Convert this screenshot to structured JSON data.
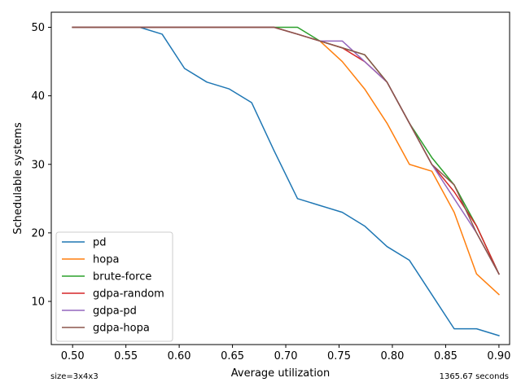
{
  "chart_data": {
    "type": "line",
    "xlabel": "Average utilization",
    "ylabel": "Schedulable systems",
    "xlim": [
      0.48,
      0.91
    ],
    "ylim": [
      3.7,
      52.2
    ],
    "xticks": [
      0.5,
      0.55,
      0.6,
      0.65,
      0.7,
      0.75,
      0.8,
      0.85,
      0.9
    ],
    "xtick_labels": [
      "0.50",
      "0.55",
      "0.60",
      "0.65",
      "0.70",
      "0.75",
      "0.80",
      "0.85",
      "0.90"
    ],
    "yticks": [
      10,
      20,
      30,
      40,
      50
    ],
    "ytick_labels": [
      "10",
      "20",
      "30",
      "40",
      "50"
    ],
    "grid": false,
    "legend_position": "lower-left",
    "x": [
      0.5,
      0.521,
      0.542,
      0.563,
      0.584,
      0.605,
      0.626,
      0.647,
      0.668,
      0.689,
      0.711,
      0.732,
      0.753,
      0.774,
      0.795,
      0.816,
      0.837,
      0.858,
      0.879,
      0.9
    ],
    "series": [
      {
        "name": "pd",
        "color": "#1f77b4",
        "values": [
          50,
          50,
          50,
          50,
          49,
          44,
          42,
          41,
          39,
          32,
          25,
          24,
          23,
          21,
          18,
          16,
          11,
          6,
          6,
          5
        ]
      },
      {
        "name": "hopa",
        "color": "#ff7f0e",
        "values": [
          50,
          50,
          50,
          50,
          50,
          50,
          50,
          50,
          50,
          50,
          49,
          48,
          45,
          41,
          36,
          30,
          29,
          23,
          14,
          11
        ]
      },
      {
        "name": "brute-force",
        "color": "#2ca02c",
        "values": [
          50,
          50,
          50,
          50,
          50,
          50,
          50,
          50,
          50,
          50,
          50,
          48,
          47,
          46,
          42,
          36,
          31,
          27,
          21,
          14
        ]
      },
      {
        "name": "gdpa-random",
        "color": "#d62728",
        "values": [
          50,
          50,
          50,
          50,
          50,
          50,
          50,
          50,
          50,
          50,
          49,
          48,
          47,
          45,
          42,
          36,
          30,
          26,
          21,
          14
        ]
      },
      {
        "name": "gdpa-pd",
        "color": "#9467bd",
        "values": [
          50,
          50,
          50,
          50,
          50,
          50,
          50,
          50,
          50,
          50,
          49,
          48,
          48,
          45,
          42,
          36,
          30,
          25,
          20,
          14
        ]
      },
      {
        "name": "gdpa-hopa",
        "color": "#8c564b",
        "values": [
          50,
          50,
          50,
          50,
          50,
          50,
          50,
          50,
          50,
          50,
          49,
          48,
          47,
          46,
          42,
          36,
          30,
          27,
          20,
          14
        ]
      }
    ]
  },
  "notes": {
    "left": "size=3x4x3",
    "right": "1365.67 seconds"
  }
}
